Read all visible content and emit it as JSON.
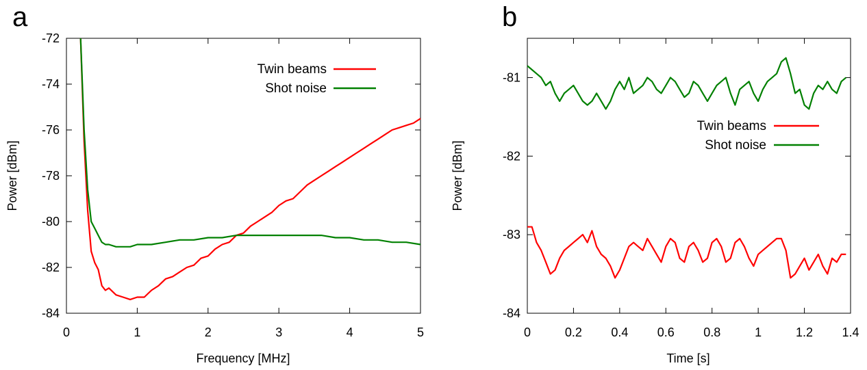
{
  "chart_data": [
    {
      "panel": "a",
      "type": "line",
      "xlabel": "Frequency [MHz]",
      "ylabel": "Power [dBm]",
      "xlim": [
        0,
        5
      ],
      "ylim": [
        -84,
        -72
      ],
      "xticks": [
        "0",
        "1",
        "2",
        "3",
        "4",
        "5"
      ],
      "yticks": [
        "-84",
        "-82",
        "-80",
        "-78",
        "-76",
        "-74",
        "-72"
      ],
      "legend_position": "top-right",
      "series": [
        {
          "name": "Twin beams",
          "color": "#ff0000",
          "x": [
            0.2,
            0.25,
            0.3,
            0.35,
            0.4,
            0.45,
            0.5,
            0.55,
            0.6,
            0.7,
            0.8,
            0.9,
            1.0,
            1.1,
            1.2,
            1.3,
            1.4,
            1.5,
            1.6,
            1.7,
            1.8,
            1.9,
            2.0,
            2.1,
            2.2,
            2.3,
            2.4,
            2.5,
            2.6,
            2.7,
            2.8,
            2.9,
            3.0,
            3.1,
            3.2,
            3.3,
            3.4,
            3.5,
            3.6,
            3.7,
            3.8,
            3.9,
            4.0,
            4.1,
            4.2,
            4.3,
            4.4,
            4.5,
            4.6,
            4.7,
            4.8,
            4.9,
            5.0
          ],
          "y": [
            -72.0,
            -76.5,
            -79.5,
            -81.3,
            -81.8,
            -82.1,
            -82.8,
            -83.0,
            -82.9,
            -83.2,
            -83.3,
            -83.4,
            -83.3,
            -83.3,
            -83.0,
            -82.8,
            -82.5,
            -82.4,
            -82.2,
            -82.0,
            -81.9,
            -81.6,
            -81.5,
            -81.2,
            -81.0,
            -80.9,
            -80.6,
            -80.5,
            -80.2,
            -80.0,
            -79.8,
            -79.6,
            -79.3,
            -79.1,
            -79.0,
            -78.7,
            -78.4,
            -78.2,
            -78.0,
            -77.8,
            -77.6,
            -77.4,
            -77.2,
            -77.0,
            -76.8,
            -76.6,
            -76.4,
            -76.2,
            -76.0,
            -75.9,
            -75.8,
            -75.7,
            -75.5
          ]
        },
        {
          "name": "Shot noise",
          "color": "#008000",
          "x": [
            0.2,
            0.25,
            0.3,
            0.35,
            0.4,
            0.45,
            0.5,
            0.55,
            0.6,
            0.7,
            0.8,
            0.9,
            1.0,
            1.2,
            1.4,
            1.6,
            1.8,
            2.0,
            2.2,
            2.4,
            2.6,
            2.8,
            3.0,
            3.2,
            3.4,
            3.6,
            3.8,
            4.0,
            4.2,
            4.4,
            4.6,
            4.8,
            5.0
          ],
          "y": [
            -72.0,
            -76.0,
            -78.6,
            -80.0,
            -80.3,
            -80.6,
            -80.9,
            -81.0,
            -81.0,
            -81.1,
            -81.1,
            -81.1,
            -81.0,
            -81.0,
            -80.9,
            -80.8,
            -80.8,
            -80.7,
            -80.7,
            -80.6,
            -80.6,
            -80.6,
            -80.6,
            -80.6,
            -80.6,
            -80.6,
            -80.7,
            -80.7,
            -80.8,
            -80.8,
            -80.9,
            -80.9,
            -81.0
          ]
        }
      ]
    },
    {
      "panel": "b",
      "type": "line",
      "xlabel": "Time [s]",
      "ylabel": "Power [dBm]",
      "xlim": [
        0,
        1.4
      ],
      "ylim": [
        -84,
        -80.5
      ],
      "xticks": [
        "0",
        "0.2",
        "0.4",
        "0.6",
        "0.8",
        "1",
        "1.2",
        "1.4"
      ],
      "yticks": [
        "-84",
        "-83",
        "-82",
        "-81"
      ],
      "legend_position": "top-right (below green trace)",
      "series": [
        {
          "name": "Twin beams",
          "color": "#ff0000",
          "x": [
            0.0,
            0.02,
            0.04,
            0.06,
            0.08,
            0.1,
            0.12,
            0.14,
            0.16,
            0.18,
            0.2,
            0.22,
            0.24,
            0.26,
            0.28,
            0.3,
            0.32,
            0.34,
            0.36,
            0.38,
            0.4,
            0.42,
            0.44,
            0.46,
            0.48,
            0.5,
            0.52,
            0.54,
            0.56,
            0.58,
            0.6,
            0.62,
            0.64,
            0.66,
            0.68,
            0.7,
            0.72,
            0.74,
            0.76,
            0.78,
            0.8,
            0.82,
            0.84,
            0.86,
            0.88,
            0.9,
            0.92,
            0.94,
            0.96,
            0.98,
            1.0,
            1.02,
            1.04,
            1.06,
            1.08,
            1.1,
            1.12,
            1.14,
            1.16,
            1.18,
            1.2,
            1.22,
            1.24,
            1.26,
            1.28,
            1.3,
            1.32,
            1.34,
            1.36,
            1.38
          ],
          "y": [
            -82.9,
            -82.9,
            -83.1,
            -83.2,
            -83.35,
            -83.5,
            -83.45,
            -83.3,
            -83.2,
            -83.15,
            -83.1,
            -83.05,
            -83.0,
            -83.1,
            -82.95,
            -83.15,
            -83.25,
            -83.3,
            -83.4,
            -83.55,
            -83.45,
            -83.3,
            -83.15,
            -83.1,
            -83.15,
            -83.2,
            -83.05,
            -83.15,
            -83.25,
            -83.35,
            -83.15,
            -83.05,
            -83.1,
            -83.3,
            -83.35,
            -83.15,
            -83.1,
            -83.2,
            -83.35,
            -83.3,
            -83.1,
            -83.05,
            -83.15,
            -83.35,
            -83.3,
            -83.1,
            -83.05,
            -83.15,
            -83.3,
            -83.4,
            -83.25,
            -83.2,
            -83.15,
            -83.1,
            -83.05,
            -83.05,
            -83.2,
            -83.55,
            -83.5,
            -83.4,
            -83.3,
            -83.45,
            -83.35,
            -83.25,
            -83.4,
            -83.5,
            -83.3,
            -83.35,
            -83.25,
            -83.25
          ]
        },
        {
          "name": "Shot noise",
          "color": "#008000",
          "x": [
            0.0,
            0.02,
            0.04,
            0.06,
            0.08,
            0.1,
            0.12,
            0.14,
            0.16,
            0.18,
            0.2,
            0.22,
            0.24,
            0.26,
            0.28,
            0.3,
            0.32,
            0.34,
            0.36,
            0.38,
            0.4,
            0.42,
            0.44,
            0.46,
            0.48,
            0.5,
            0.52,
            0.54,
            0.56,
            0.58,
            0.6,
            0.62,
            0.64,
            0.66,
            0.68,
            0.7,
            0.72,
            0.74,
            0.76,
            0.78,
            0.8,
            0.82,
            0.84,
            0.86,
            0.88,
            0.9,
            0.92,
            0.94,
            0.96,
            0.98,
            1.0,
            1.02,
            1.04,
            1.06,
            1.08,
            1.1,
            1.12,
            1.14,
            1.16,
            1.18,
            1.2,
            1.22,
            1.24,
            1.26,
            1.28,
            1.3,
            1.32,
            1.34,
            1.36,
            1.38
          ],
          "y": [
            -80.85,
            -80.9,
            -80.95,
            -81.0,
            -81.1,
            -81.05,
            -81.2,
            -81.3,
            -81.2,
            -81.15,
            -81.1,
            -81.2,
            -81.3,
            -81.35,
            -81.3,
            -81.2,
            -81.3,
            -81.4,
            -81.3,
            -81.15,
            -81.05,
            -81.15,
            -81.0,
            -81.2,
            -81.15,
            -81.1,
            -81.0,
            -81.05,
            -81.15,
            -81.2,
            -81.1,
            -81.0,
            -81.05,
            -81.15,
            -81.25,
            -81.2,
            -81.05,
            -81.1,
            -81.2,
            -81.3,
            -81.2,
            -81.1,
            -81.05,
            -81.0,
            -81.2,
            -81.35,
            -81.15,
            -81.1,
            -81.05,
            -81.2,
            -81.3,
            -81.15,
            -81.05,
            -81.0,
            -80.95,
            -80.8,
            -80.75,
            -80.95,
            -81.2,
            -81.15,
            -81.35,
            -81.4,
            -81.2,
            -81.1,
            -81.15,
            -81.05,
            -81.15,
            -81.2,
            -81.05,
            -81.0
          ]
        }
      ]
    }
  ]
}
